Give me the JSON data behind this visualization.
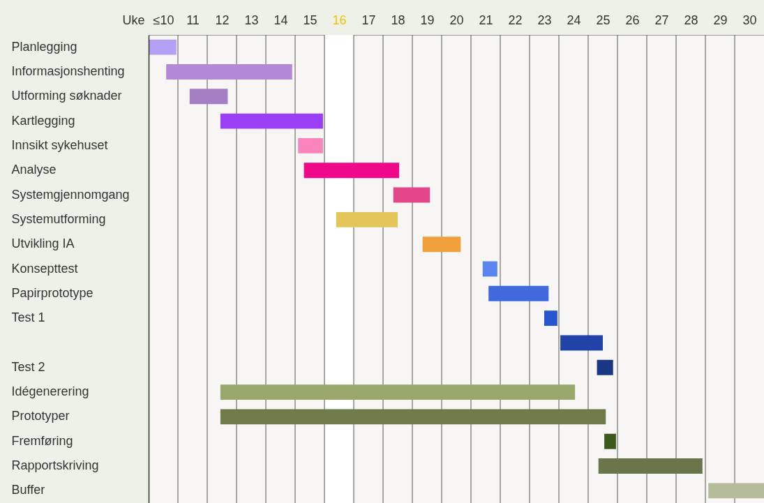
{
  "chart_data": {
    "type": "bar",
    "orientation": "horizontal",
    "xlabel": "Uke",
    "categories": [
      "Planlegging",
      "Informasjonshenting",
      "Utforming søknader",
      "Kartlegging",
      "Innsikt sykehuset",
      "Analyse",
      "Systemgjennomgang",
      "Systemutforming",
      "Utvikling IA",
      "Konsepttest",
      "Papirprototype",
      "Test 1",
      null,
      "Test 2",
      "Idégenerering",
      "Prototyper",
      "Fremføring",
      "Rapportskriving",
      "Buffer"
    ],
    "base": [
      10,
      10.6,
      11.4,
      12.45,
      15.1,
      15.3,
      18.35,
      16.4,
      19.35,
      21.4,
      21.6,
      23.5,
      24.05,
      25.3,
      12.45,
      12.45,
      25.55,
      25.35,
      29.1
    ],
    "values": [
      0.95,
      4.3,
      1.3,
      3.5,
      0.85,
      3.25,
      1.25,
      2.1,
      1.3,
      0.5,
      2.05,
      0.45,
      1.45,
      0.55,
      12.1,
      13.15,
      0.4,
      3.55,
      1.9
    ],
    "colors": [
      "#b4a0f5",
      "#b388d6",
      "#a57fc4",
      "#9b3ff7",
      "#fc84bc",
      "#f0088a",
      "#e3478a",
      "#e3c55a",
      "#f2a03c",
      "#5b84ee",
      "#4169dd",
      "#2955d0",
      "#2142a8",
      "#1c3686",
      "#99a76c",
      "#6e7c4a",
      "#3c5a1c",
      "#68764a",
      "#b5bc9a"
    ],
    "xlim": [
      10,
      31
    ],
    "xticks": [
      {
        "value": 10.5,
        "label": "≤10"
      },
      {
        "value": 11.5,
        "label": "11"
      },
      {
        "value": 12.5,
        "label": "12"
      },
      {
        "value": 13.5,
        "label": "13"
      },
      {
        "value": 14.5,
        "label": "14"
      },
      {
        "value": 15.5,
        "label": "15"
      },
      {
        "value": 16.5,
        "label": "16"
      },
      {
        "value": 17.5,
        "label": "17"
      },
      {
        "value": 18.5,
        "label": "18"
      },
      {
        "value": 19.5,
        "label": "19"
      },
      {
        "value": 20.5,
        "label": "20"
      },
      {
        "value": 21.5,
        "label": "21"
      },
      {
        "value": 22.5,
        "label": "22"
      },
      {
        "value": 23.5,
        "label": "23"
      },
      {
        "value": 24.5,
        "label": "24"
      },
      {
        "value": 25.5,
        "label": "25"
      },
      {
        "value": 26.5,
        "label": "26"
      },
      {
        "value": 27.5,
        "label": "27"
      },
      {
        "value": 28.5,
        "label": "28"
      },
      {
        "value": 29.5,
        "label": "29"
      },
      {
        "value": 30.5,
        "label": "30"
      }
    ],
    "grid": true,
    "bands": [
      {
        "axis": "x",
        "from": 16,
        "to": 17,
        "color": "#ffffff"
      }
    ]
  }
}
